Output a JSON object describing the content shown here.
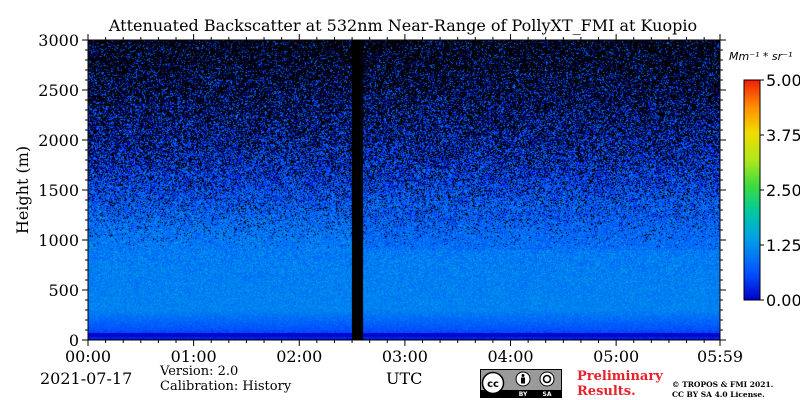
{
  "chart_data": {
    "type": "heatmap",
    "title": "Attenuated Backscatter at 532nm Near-Range of PollyXT_FMI at Kuopio",
    "ylabel": "Height (m)",
    "xlabel": "UTC",
    "x_ticks": [
      "00:00",
      "01:00",
      "02:00",
      "03:00",
      "04:00",
      "05:00",
      "05:59"
    ],
    "x_tick_values_min": [
      0,
      60,
      120,
      180,
      240,
      300,
      359
    ],
    "xlim_min": [
      0,
      359
    ],
    "y_ticks": [
      "0",
      "500",
      "1000",
      "1500",
      "2000",
      "2500",
      "3000"
    ],
    "y_tick_values": [
      0,
      500,
      1000,
      1500,
      2000,
      2500,
      3000
    ],
    "ylim": [
      0,
      3000
    ],
    "no_data_interval_min": [
      150,
      156
    ],
    "colorbar": {
      "label": "Mm⁻¹ * sr⁻¹",
      "tick_labels": [
        "0.00",
        "1.25",
        "2.50",
        "3.75",
        "5.00"
      ],
      "tick_values": [
        0,
        1.25,
        2.5,
        3.75,
        5.0
      ],
      "range": [
        0,
        5.0
      ],
      "colormap": "jet"
    },
    "profile_description_points": {
      "height_m": [
        0,
        60,
        300,
        800,
        1100,
        1500,
        2000,
        2500,
        3000
      ],
      "mean_value": [
        0.1,
        0.5,
        1.1,
        1.05,
        0.95,
        0.65,
        0.4,
        0.25,
        0.15
      ]
    }
  },
  "footer": {
    "date": "2021-07-17",
    "version": "Version: 2.0",
    "calibration": "Calibration: History",
    "utc": "UTC",
    "preliminary_line1": "Preliminary",
    "preliminary_line2": "Results.",
    "copyright_line1": "© TROPOS & FMI 2021.",
    "copyright_line2": "CC BY SA 4.0 License.",
    "license_badge": {
      "cc": "cc",
      "by": "BY",
      "sa": "SA"
    }
  },
  "colors": {
    "preliminary_text": "#e8202a",
    "no_data_band": "#000000",
    "badge_background": "#9a9a9a",
    "badge_strip": "#000000"
  }
}
